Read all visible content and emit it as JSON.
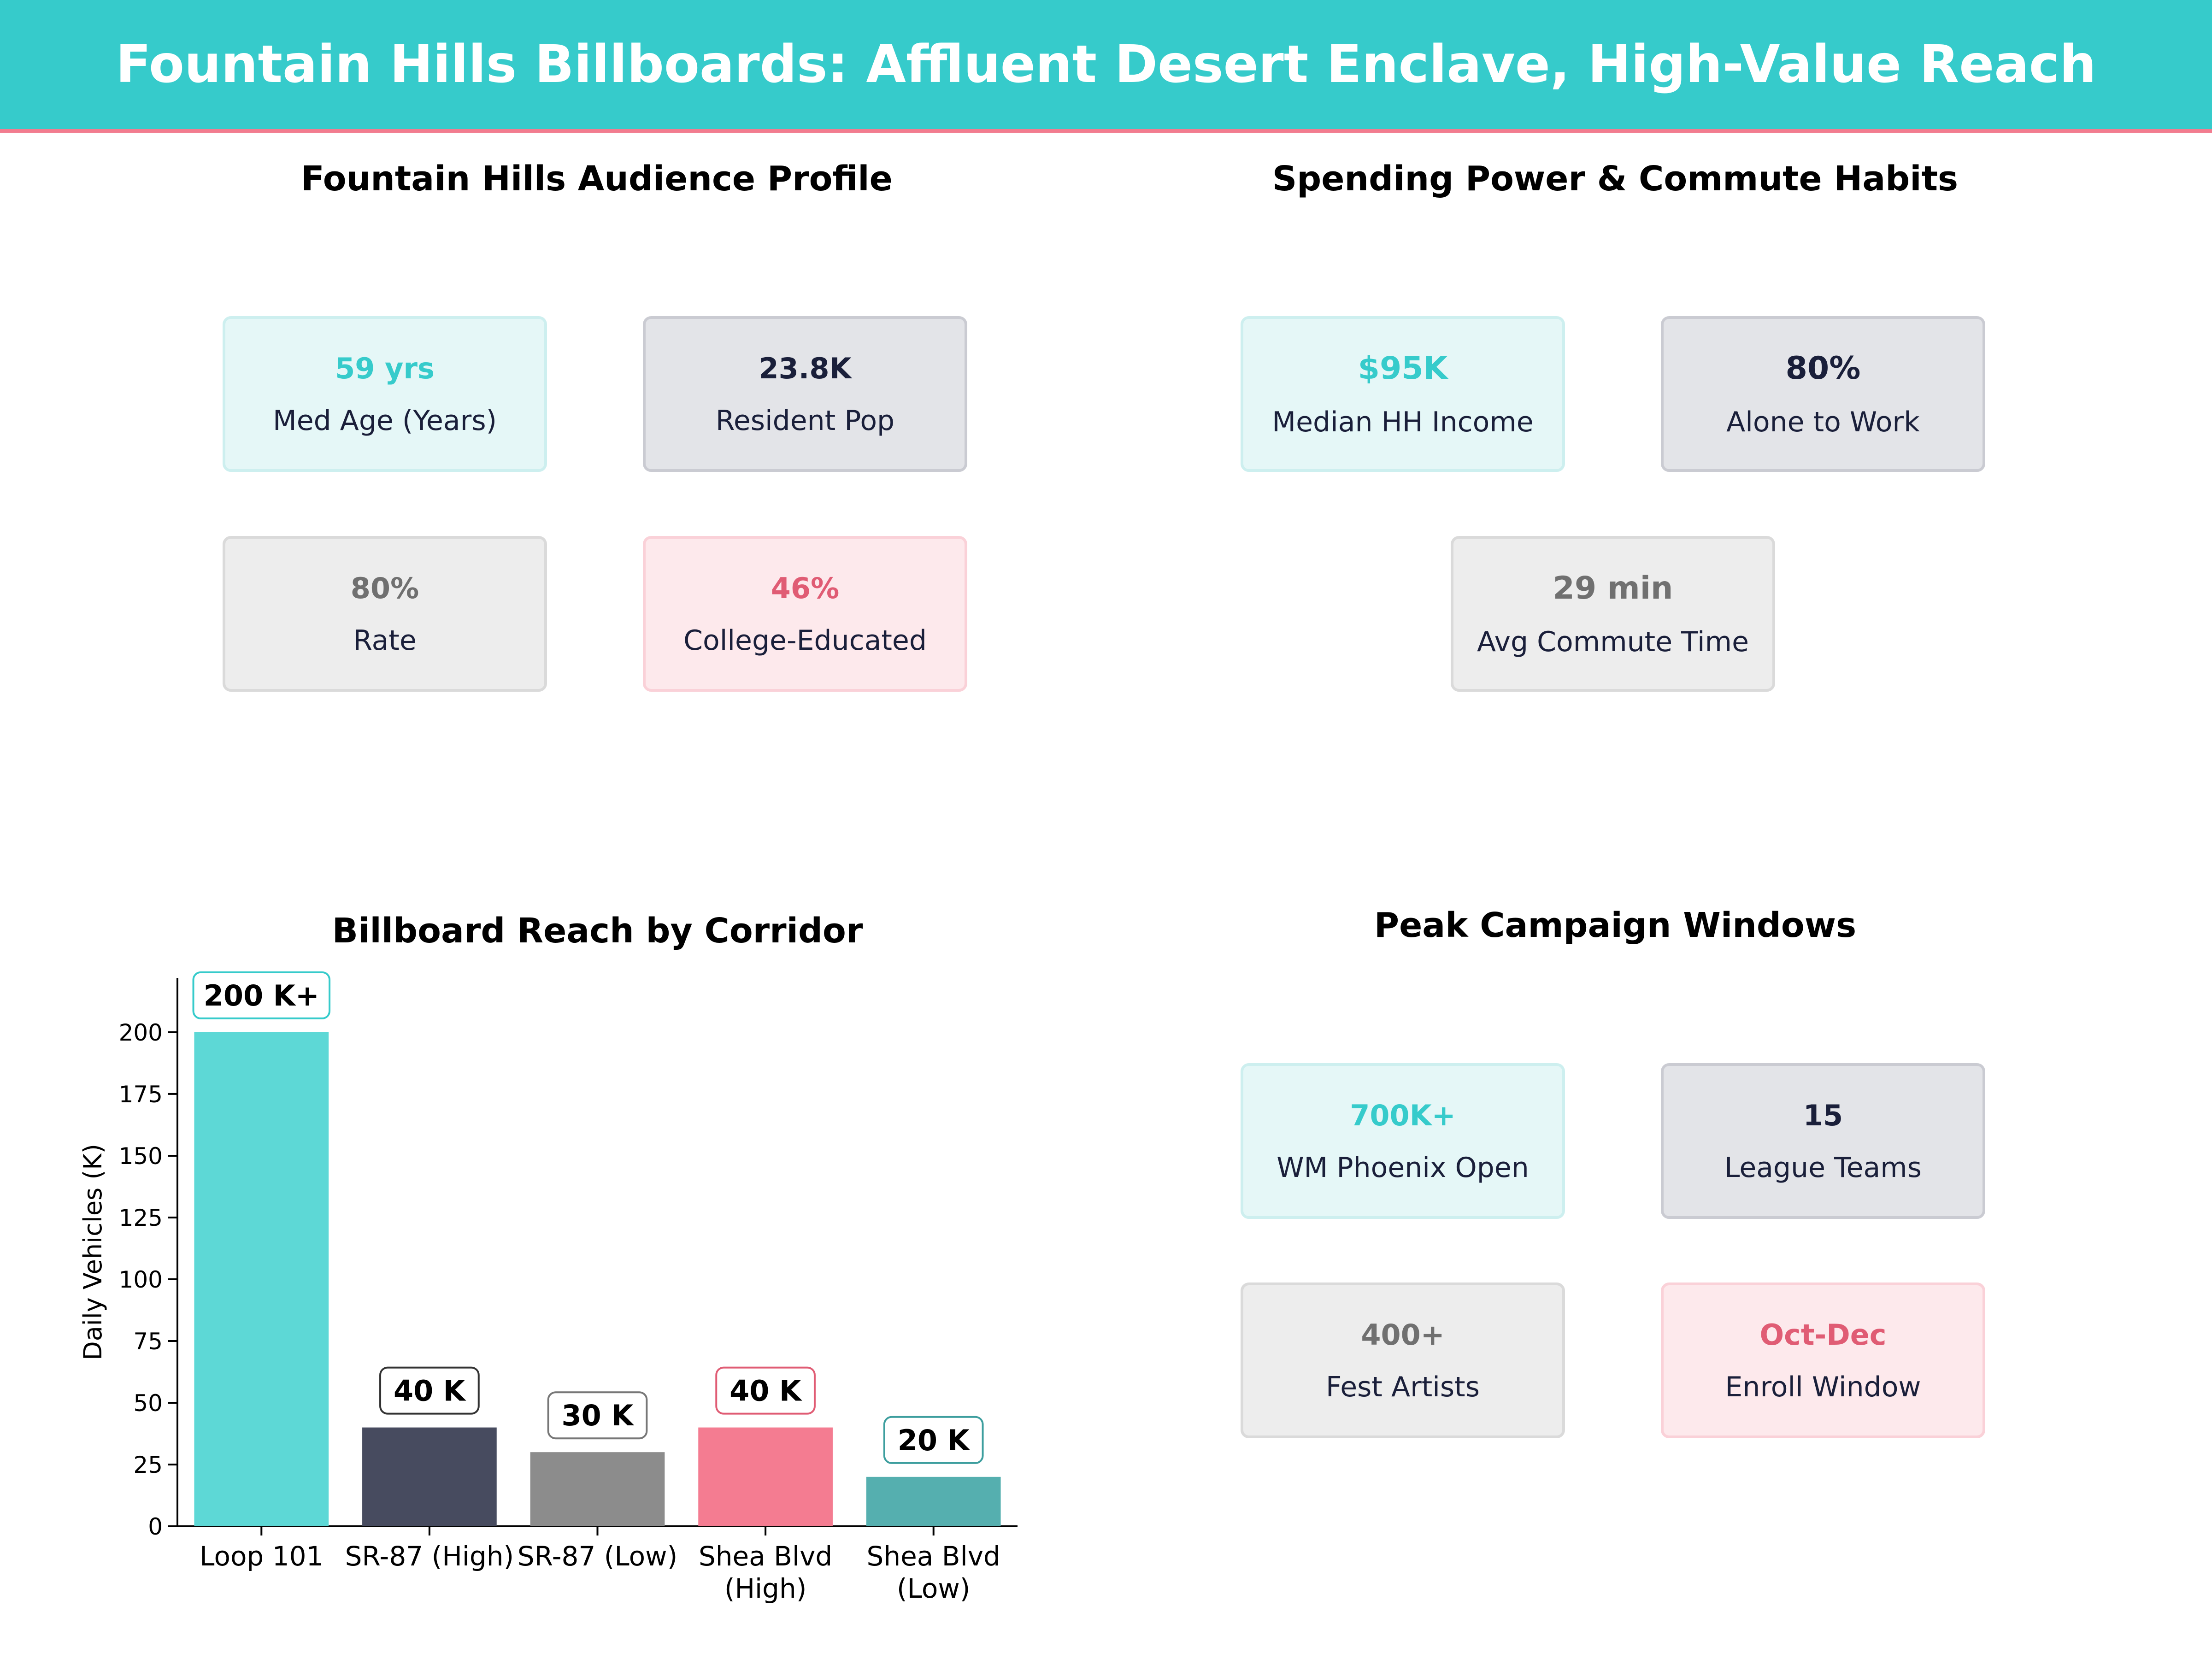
{
  "header": {
    "title": "Fountain Hills Billboards: Affluent Desert Enclave, High-Value Reach"
  },
  "colors": {
    "teal": "#36CBCB",
    "navy": "#1A1F3A",
    "gray": "#707070",
    "pink": "#E05C74",
    "accent_line": "#F27C8F"
  },
  "audience": {
    "title": "Fountain Hills Audience Profile",
    "cards": [
      {
        "value": "59 yrs",
        "label": "Med Age (Years)"
      },
      {
        "value": "23.8K",
        "label": "Resident Pop"
      },
      {
        "value": "80%",
        "label": "Rate"
      },
      {
        "value": "46%",
        "label": "College-Educated"
      }
    ]
  },
  "spending": {
    "title": "Spending Power & Commute Habits",
    "cards": [
      {
        "value": "$95K",
        "label": "Median HH Income"
      },
      {
        "value": "80%",
        "label": "Alone to Work"
      },
      {
        "value": "29 min",
        "label": "Avg Commute Time"
      }
    ]
  },
  "campaign": {
    "title": "Peak Campaign Windows",
    "cards": [
      {
        "value": "700K+",
        "label": "WM Phoenix Open"
      },
      {
        "value": "15",
        "label": "League Teams"
      },
      {
        "value": "400+",
        "label": "Fest Artists"
      },
      {
        "value": "Oct-Dec",
        "label": "Enroll Window"
      }
    ]
  },
  "chart_data": {
    "type": "bar",
    "title": "Billboard Reach by Corridor",
    "xlabel": "",
    "ylabel": "Daily Vehicles (K)",
    "categories": [
      "Loop 101",
      "SR-87 (High)",
      "SR-87 (Low)",
      "Shea Blvd (High)",
      "Shea Blvd (Low)"
    ],
    "category_lines": [
      [
        "Loop 101"
      ],
      [
        "SR-87 (High)"
      ],
      [
        "SR-87 (Low)"
      ],
      [
        "Shea Blvd",
        "(High)"
      ],
      [
        "Shea Blvd",
        "(Low)"
      ]
    ],
    "values": [
      200,
      40,
      30,
      40,
      20
    ],
    "data_labels": [
      "200 K+",
      "40 K",
      "30 K",
      "40 K",
      "20 K"
    ],
    "bar_colors": [
      "#5DD8D6",
      "#474B5F",
      "#8C8C8C",
      "#F47C91",
      "#55AFAF"
    ],
    "label_border_colors": [
      "#36CBCB",
      "#333333",
      "#777777",
      "#E05C74",
      "#3D9E9E"
    ],
    "yticks": [
      0,
      25,
      50,
      75,
      100,
      125,
      150,
      175,
      200
    ],
    "ylim": [
      0,
      222
    ],
    "grid": false,
    "legend": "none"
  }
}
